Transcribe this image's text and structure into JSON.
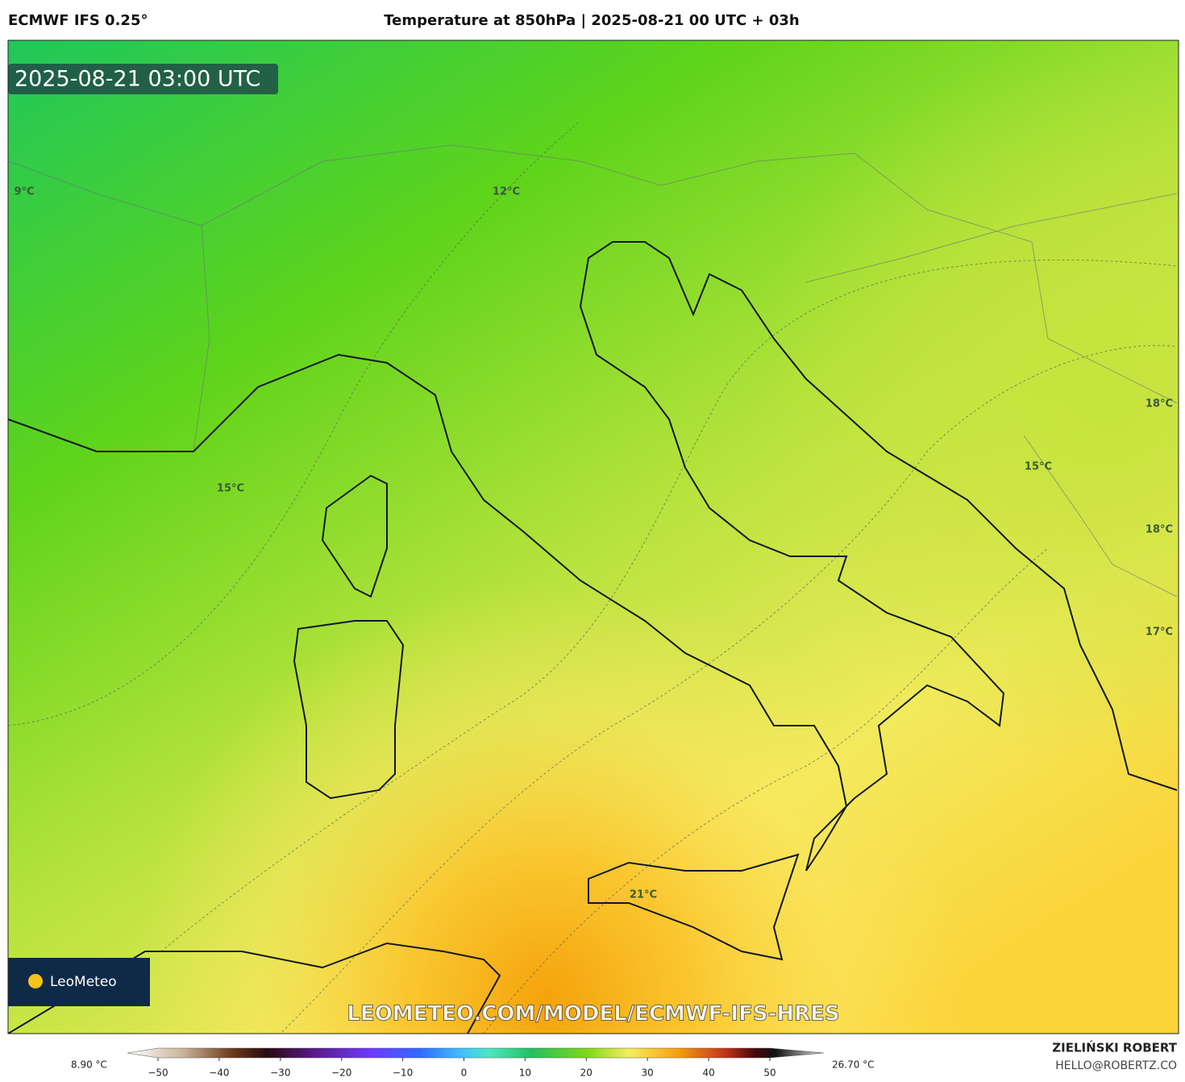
{
  "header": {
    "model": "ECMWF IFS 0.25°",
    "title": "Temperature at 850hPa | 2025-08-21 00 UTC + 03h"
  },
  "map": {
    "timestamp": "2025-08-21 03:00 UTC",
    "contour_labels": [
      "9°C",
      "12°C",
      "15°C",
      "18°C",
      "15°C",
      "18°C",
      "17°C",
      "21°C"
    ],
    "logo": "LeoMeteo",
    "watermark": "LEOMETEO.COM/MODEL/ECMWF-IFS-HRES"
  },
  "colorbar": {
    "min_label": "8.90 °C",
    "max_label": "26.70 °C",
    "ticks": [
      {
        "value": -50,
        "label": "−50"
      },
      {
        "value": -40,
        "label": "−40"
      },
      {
        "value": -30,
        "label": "−30"
      },
      {
        "value": -20,
        "label": "−20"
      },
      {
        "value": -10,
        "label": "−10"
      },
      0,
      10,
      20,
      30,
      40,
      50
    ]
  },
  "footer": {
    "author": "ZIELIŃSKI ROBERT",
    "contact": "HELLO@ROBERTZ.CO"
  }
}
